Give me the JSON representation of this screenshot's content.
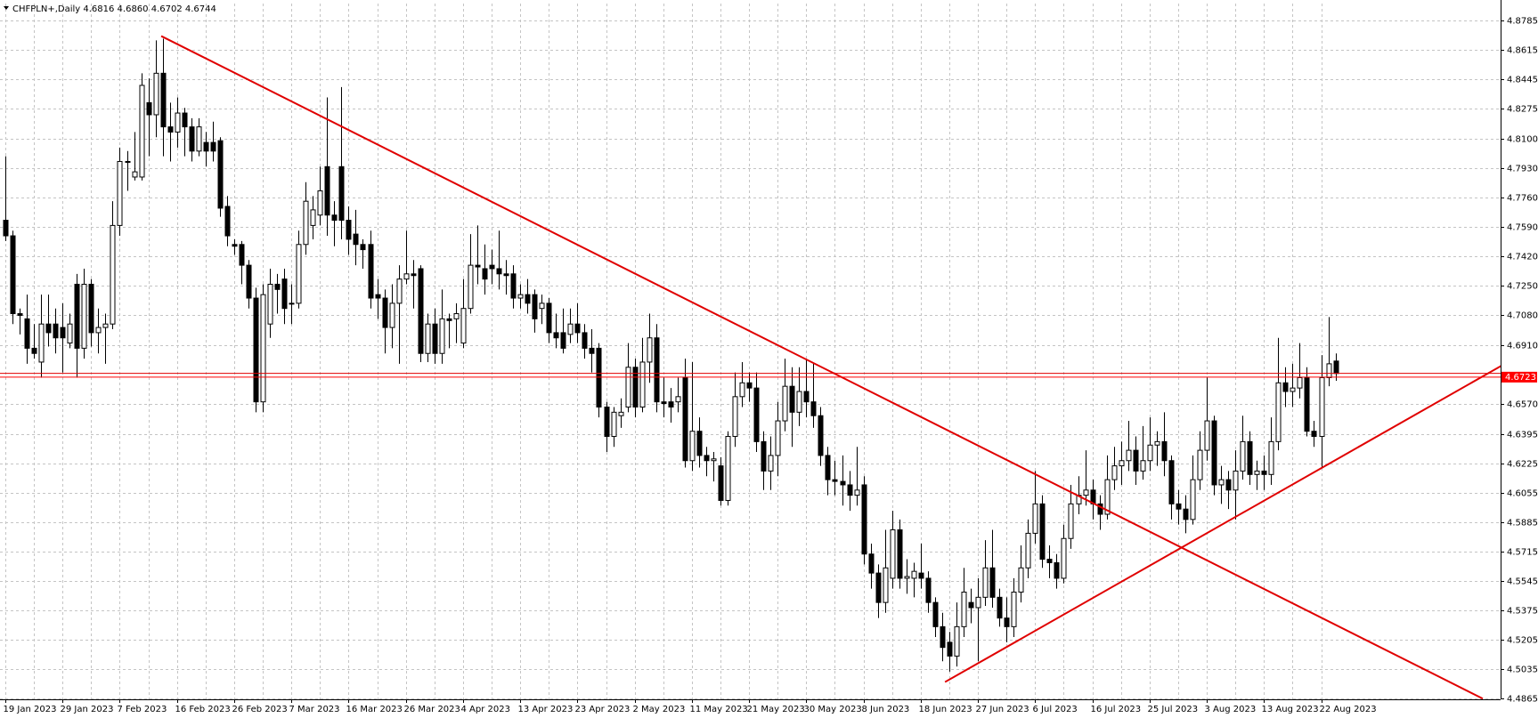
{
  "chart_data": {
    "type": "candlestick",
    "title": "CHFPLN+,Daily 4.6816 4.6860 4.6702 4.6744",
    "categories": [
      "19 Jan 2023",
      null,
      null,
      null,
      null,
      null,
      null,
      null,
      "29 Jan 2023",
      null,
      null,
      null,
      null,
      null,
      null,
      null,
      "7 Feb 2023",
      null,
      null,
      null,
      null,
      null,
      null,
      null,
      "16 Feb 2023",
      null,
      null,
      null,
      null,
      null,
      null,
      null,
      "26 Feb 2023",
      null,
      null,
      null,
      null,
      null,
      null,
      null,
      "7 Mar 2023",
      null,
      null,
      null,
      null,
      null,
      null,
      null,
      "16 Mar 2023",
      null,
      null,
      null,
      null,
      null,
      null,
      null,
      "26 Mar 2023",
      null,
      null,
      null,
      null,
      null,
      null,
      null,
      "4 Apr 2023",
      null,
      null,
      null,
      null,
      null,
      null,
      null,
      "13 Apr 2023",
      null,
      null,
      null,
      null,
      null,
      null,
      null,
      "23 Apr 2023",
      null,
      null,
      null,
      null,
      null,
      null,
      null,
      "2 May 2023",
      null,
      null,
      null,
      null,
      null,
      null,
      null,
      "11 May 2023",
      null,
      null,
      null,
      null,
      null,
      null,
      null,
      "21 May 2023",
      null,
      null,
      null,
      null,
      null,
      null,
      null,
      "30 May 2023",
      null,
      null,
      null,
      null,
      null,
      null,
      null,
      "8 Jun 2023",
      null,
      null,
      null,
      null,
      null,
      null,
      null,
      "18 Jun 2023",
      null,
      null,
      null,
      null,
      null,
      null,
      null,
      "27 Jun 2023",
      null,
      null,
      null,
      null,
      null,
      null,
      null,
      "6 Jul 2023",
      null,
      null,
      null,
      null,
      null,
      null,
      null,
      "16 Jul 2023",
      null,
      null,
      null,
      null,
      null,
      null,
      null,
      "25 Jul 2023",
      null,
      null,
      null,
      null,
      null,
      null,
      null,
      "3 Aug 2023",
      null,
      null,
      null,
      null,
      null,
      null,
      null,
      "13 Aug 2023",
      null,
      null,
      null,
      null,
      null,
      null,
      null,
      "22 Aug 2023",
      null,
      null
    ],
    "ohlc": [
      [
        4.763,
        4.8,
        4.751,
        4.754
      ],
      [
        4.754,
        4.757,
        4.703,
        4.709
      ],
      [
        4.709,
        4.712,
        4.697,
        4.708
      ],
      [
        4.706,
        4.72,
        4.68,
        4.689
      ],
      [
        4.689,
        4.703,
        4.683,
        4.686
      ],
      [
        4.681,
        4.72,
        4.672,
        4.703
      ],
      [
        4.703,
        4.72,
        4.69,
        4.698
      ],
      [
        4.703,
        4.712,
        4.686,
        4.695
      ],
      [
        4.701,
        4.715,
        4.675,
        4.695
      ],
      [
        4.692,
        4.709,
        4.689,
        4.703
      ],
      [
        4.726,
        4.732,
        4.672,
        4.689
      ],
      [
        4.689,
        4.735,
        4.683,
        4.726
      ],
      [
        4.726,
        4.729,
        4.69,
        4.698
      ],
      [
        4.698,
        4.712,
        4.686,
        4.701
      ],
      [
        4.701,
        4.709,
        4.68,
        4.703
      ],
      [
        4.703,
        4.774,
        4.7,
        4.76
      ],
      [
        4.76,
        4.805,
        4.754,
        4.797
      ],
      [
        4.797,
        4.803,
        4.78,
        4.797
      ],
      [
        4.788,
        4.814,
        4.786,
        4.791
      ],
      [
        4.788,
        4.848,
        4.786,
        4.841
      ],
      [
        4.831,
        4.845,
        4.8,
        4.824
      ],
      [
        4.824,
        4.867,
        4.811,
        4.848
      ],
      [
        4.848,
        4.868,
        4.8,
        4.817
      ],
      [
        4.817,
        4.831,
        4.797,
        4.814
      ],
      [
        4.814,
        4.834,
        4.805,
        4.825
      ],
      [
        4.825,
        4.828,
        4.8,
        4.817
      ],
      [
        4.817,
        4.822,
        4.797,
        4.803
      ],
      [
        4.803,
        4.822,
        4.8,
        4.817
      ],
      [
        4.808,
        4.814,
        4.794,
        4.803
      ],
      [
        4.808,
        4.82,
        4.797,
        4.803
      ],
      [
        4.809,
        4.811,
        4.765,
        4.77
      ],
      [
        4.771,
        4.777,
        4.748,
        4.754
      ],
      [
        4.749,
        4.752,
        4.743,
        4.748
      ],
      [
        4.749,
        4.751,
        4.726,
        4.737
      ],
      [
        4.737,
        4.74,
        4.712,
        4.718
      ],
      [
        4.718,
        4.724,
        4.652,
        4.658
      ],
      [
        4.658,
        4.726,
        4.652,
        4.72
      ],
      [
        4.703,
        4.735,
        4.695,
        4.726
      ],
      [
        4.726,
        4.732,
        4.709,
        4.723
      ],
      [
        4.729,
        4.735,
        4.703,
        4.712
      ],
      [
        4.715,
        4.726,
        4.703,
        4.715
      ],
      [
        4.715,
        4.757,
        4.712,
        4.749
      ],
      [
        4.749,
        4.785,
        4.743,
        4.774
      ],
      [
        4.76,
        4.777,
        4.752,
        4.769
      ],
      [
        4.766,
        4.794,
        4.76,
        4.78
      ],
      [
        4.794,
        4.834,
        4.754,
        4.766
      ],
      [
        4.766,
        4.774,
        4.748,
        4.763
      ],
      [
        4.794,
        4.84,
        4.752,
        4.763
      ],
      [
        4.763,
        4.771,
        4.743,
        4.752
      ],
      [
        4.755,
        4.769,
        4.737,
        4.749
      ],
      [
        4.749,
        4.752,
        4.735,
        4.746
      ],
      [
        4.749,
        4.757,
        4.712,
        4.718
      ],
      [
        4.72,
        4.729,
        4.706,
        4.718
      ],
      [
        4.718,
        4.723,
        4.686,
        4.701
      ],
      [
        4.701,
        4.726,
        4.689,
        4.715
      ],
      [
        4.715,
        4.737,
        4.68,
        4.729
      ],
      [
        4.729,
        4.757,
        4.726,
        4.732
      ],
      [
        4.732,
        4.74,
        4.712,
        4.731
      ],
      [
        4.735,
        4.737,
        4.681,
        4.686
      ],
      [
        4.686,
        4.709,
        4.681,
        4.703
      ],
      [
        4.703,
        4.712,
        4.68,
        4.686
      ],
      [
        4.686,
        4.723,
        4.68,
        4.706
      ],
      [
        4.706,
        4.709,
        4.689,
        4.705
      ],
      [
        4.706,
        4.715,
        4.692,
        4.709
      ],
      [
        4.692,
        4.729,
        4.689,
        4.712
      ],
      [
        4.712,
        4.755,
        4.709,
        4.737
      ],
      [
        4.737,
        4.76,
        4.726,
        4.736
      ],
      [
        4.735,
        4.749,
        4.72,
        4.729
      ],
      [
        4.737,
        4.746,
        4.726,
        4.735
      ],
      [
        4.735,
        4.757,
        4.723,
        4.732
      ],
      [
        4.732,
        4.74,
        4.72,
        4.731
      ],
      [
        4.732,
        4.737,
        4.712,
        4.718
      ],
      [
        4.718,
        4.726,
        4.712,
        4.72
      ],
      [
        4.72,
        4.729,
        4.709,
        4.715
      ],
      [
        4.72,
        4.723,
        4.698,
        4.706
      ],
      [
        4.712,
        4.72,
        4.703,
        4.715
      ],
      [
        4.715,
        4.718,
        4.692,
        4.698
      ],
      [
        4.698,
        4.709,
        4.689,
        4.695
      ],
      [
        4.698,
        4.712,
        4.686,
        4.689
      ],
      [
        4.697,
        4.712,
        4.692,
        4.703
      ],
      [
        4.703,
        4.715,
        4.692,
        4.698
      ],
      [
        4.698,
        4.703,
        4.683,
        4.689
      ],
      [
        4.689,
        4.7,
        4.675,
        4.686
      ],
      [
        4.689,
        4.692,
        4.649,
        4.655
      ],
      [
        4.655,
        4.658,
        4.629,
        4.638
      ],
      [
        4.638,
        4.655,
        4.632,
        4.652
      ],
      [
        4.65,
        4.66,
        4.643,
        4.652
      ],
      [
        4.655,
        4.692,
        4.652,
        4.678
      ],
      [
        4.678,
        4.683,
        4.649,
        4.655
      ],
      [
        4.655,
        4.695,
        4.652,
        4.681
      ],
      [
        4.681,
        4.709,
        4.669,
        4.695
      ],
      [
        4.695,
        4.703,
        4.652,
        4.658
      ],
      [
        4.658,
        4.672,
        4.649,
        4.657
      ],
      [
        4.658,
        4.666,
        4.646,
        4.655
      ],
      [
        4.658,
        4.672,
        4.652,
        4.661
      ],
      [
        4.672,
        4.683,
        4.62,
        4.624
      ],
      [
        4.624,
        4.681,
        4.618,
        4.641
      ],
      [
        4.641,
        4.649,
        4.62,
        4.627
      ],
      [
        4.627,
        4.632,
        4.615,
        4.624
      ],
      [
        4.624,
        4.629,
        4.612,
        4.625
      ],
      [
        4.621,
        4.626,
        4.598,
        4.601
      ],
      [
        4.601,
        4.641,
        4.598,
        4.638
      ],
      [
        4.638,
        4.675,
        4.632,
        4.661
      ],
      [
        4.661,
        4.681,
        4.655,
        4.669
      ],
      [
        4.669,
        4.675,
        4.658,
        4.666
      ],
      [
        4.666,
        4.675,
        4.629,
        4.635
      ],
      [
        4.635,
        4.641,
        4.607,
        4.618
      ],
      [
        4.618,
        4.638,
        4.607,
        4.627
      ],
      [
        4.627,
        4.658,
        4.615,
        4.647
      ],
      [
        4.647,
        4.683,
        4.641,
        4.667
      ],
      [
        4.667,
        4.678,
        4.632,
        4.652
      ],
      [
        4.652,
        4.678,
        4.644,
        4.664
      ],
      [
        4.664,
        4.683,
        4.649,
        4.658
      ],
      [
        4.658,
        4.68,
        4.643,
        4.65
      ],
      [
        4.65,
        4.655,
        4.621,
        4.627
      ],
      [
        4.627,
        4.632,
        4.604,
        4.613
      ],
      [
        4.613,
        4.624,
        4.604,
        4.612
      ],
      [
        4.612,
        4.627,
        4.598,
        4.61
      ],
      [
        4.61,
        4.618,
        4.595,
        4.604
      ],
      [
        4.604,
        4.632,
        4.598,
        4.607
      ],
      [
        4.61,
        4.615,
        4.564,
        4.57
      ],
      [
        4.57,
        4.576,
        4.55,
        4.559
      ],
      [
        4.559,
        4.564,
        4.533,
        4.542
      ],
      [
        4.542,
        4.584,
        4.536,
        4.562
      ],
      [
        4.556,
        4.595,
        4.55,
        4.584
      ],
      [
        4.584,
        4.59,
        4.55,
        4.556
      ],
      [
        4.556,
        4.567,
        4.547,
        4.557
      ],
      [
        4.556,
        4.565,
        4.545,
        4.56
      ],
      [
        4.559,
        4.576,
        4.55,
        4.556
      ],
      [
        4.556,
        4.56,
        4.536,
        4.542
      ],
      [
        4.542,
        4.545,
        4.522,
        4.528
      ],
      [
        4.528,
        4.536,
        4.508,
        4.516
      ],
      [
        4.519,
        4.525,
        4.502,
        4.511
      ],
      [
        4.511,
        4.542,
        4.505,
        4.528
      ],
      [
        4.528,
        4.562,
        4.522,
        4.548
      ],
      [
        4.542,
        4.55,
        4.53,
        4.539
      ],
      [
        4.539,
        4.556,
        4.508,
        4.545
      ],
      [
        4.545,
        4.578,
        4.54,
        4.562
      ],
      [
        4.562,
        4.584,
        4.539,
        4.545
      ],
      [
        4.545,
        4.55,
        4.528,
        4.533
      ],
      [
        4.533,
        4.545,
        4.519,
        4.528
      ],
      [
        4.528,
        4.556,
        4.522,
        4.548
      ],
      [
        4.548,
        4.575,
        4.542,
        4.562
      ],
      [
        4.562,
        4.59,
        4.556,
        4.582
      ],
      [
        4.582,
        4.618,
        4.576,
        4.599
      ],
      [
        4.599,
        4.604,
        4.562,
        4.567
      ],
      [
        4.567,
        4.575,
        4.556,
        4.565
      ],
      [
        4.565,
        4.57,
        4.55,
        4.556
      ],
      [
        4.556,
        4.587,
        4.553,
        4.579
      ],
      [
        4.579,
        4.61,
        4.573,
        4.599
      ],
      [
        4.599,
        4.615,
        4.593,
        4.604
      ],
      [
        4.604,
        4.63,
        4.598,
        4.607
      ],
      [
        4.607,
        4.613,
        4.59,
        4.599
      ],
      [
        4.599,
        4.604,
        4.584,
        4.593
      ],
      [
        4.593,
        4.627,
        4.59,
        4.613
      ],
      [
        4.613,
        4.632,
        4.607,
        4.621
      ],
      [
        4.621,
        4.635,
        4.61,
        4.624
      ],
      [
        4.624,
        4.647,
        4.618,
        4.63
      ],
      [
        4.63,
        4.638,
        4.61,
        4.618
      ],
      [
        4.618,
        4.644,
        4.613,
        4.624
      ],
      [
        4.624,
        4.649,
        4.618,
        4.633
      ],
      [
        4.633,
        4.641,
        4.621,
        4.635
      ],
      [
        4.635,
        4.652,
        4.615,
        4.624
      ],
      [
        4.624,
        4.627,
        4.59,
        4.599
      ],
      [
        4.599,
        4.607,
        4.587,
        4.596
      ],
      [
        4.596,
        4.604,
        4.582,
        4.59
      ],
      [
        4.59,
        4.627,
        4.587,
        4.613
      ],
      [
        4.613,
        4.641,
        4.607,
        4.63
      ],
      [
        4.63,
        4.672,
        4.624,
        4.647
      ],
      [
        4.647,
        4.65,
        4.604,
        4.61
      ],
      [
        4.61,
        4.621,
        4.599,
        4.613
      ],
      [
        4.613,
        4.618,
        4.596,
        4.607
      ],
      [
        4.607,
        4.63,
        4.59,
        4.618
      ],
      [
        4.618,
        4.65,
        4.613,
        4.635
      ],
      [
        4.635,
        4.641,
        4.61,
        4.616
      ],
      [
        4.616,
        4.624,
        4.607,
        4.618
      ],
      [
        4.618,
        4.627,
        4.607,
        4.616
      ],
      [
        4.616,
        4.649,
        4.61,
        4.635
      ],
      [
        4.635,
        4.695,
        4.63,
        4.669
      ],
      [
        4.669,
        4.678,
        4.655,
        4.664
      ],
      [
        4.664,
        4.68,
        4.655,
        4.666
      ],
      [
        4.666,
        4.692,
        4.66,
        4.672
      ],
      [
        4.672,
        4.678,
        4.638,
        4.641
      ],
      [
        4.641,
        4.647,
        4.632,
        4.638
      ],
      [
        4.638,
        4.685,
        4.62,
        4.672
      ],
      [
        4.672,
        4.707,
        4.667,
        4.68
      ],
      [
        4.6816,
        4.686,
        4.6702,
        4.6744
      ]
    ],
    "up_color": "#ffffff",
    "down_color": "#000000",
    "wick_color": "#000000",
    "ylim": [
      4.486,
      4.8883
    ],
    "yticks": [
      4.8785,
      4.8615,
      4.8445,
      4.8275,
      {
        "value": 4.81,
        "label": "4.8100"
      },
      {
        "value": 4.793,
        "label": "4.7930"
      },
      {
        "value": 4.776,
        "label": "4.7760"
      },
      {
        "value": 4.759,
        "label": "4.7590"
      },
      {
        "value": 4.742,
        "label": "4.7420"
      },
      {
        "value": 4.725,
        "label": "4.7250"
      },
      {
        "value": 4.708,
        "label": "4.7080"
      },
      {
        "value": 4.691,
        "label": "4.6910"
      },
      {
        "value": 4.657,
        "label": "4.6570"
      },
      4.6395,
      4.6225,
      4.6055,
      4.5885,
      4.5715,
      4.5545,
      4.5375,
      4.5205,
      4.5035,
      4.4865
    ],
    "grid": true,
    "price_line": {
      "value": 4.6723,
      "color": "#ff0000"
    },
    "horizontal_lines": [
      4.6745
    ],
    "trendlines": [
      {
        "x": [
          21.8,
          206.6
        ],
        "y": [
          4.8695,
          4.4864
        ]
      },
      {
        "x": [
          131.4,
          209.3
        ],
        "y": [
          4.496,
          4.6791
        ]
      }
    ],
    "line_color": "#e00000"
  }
}
